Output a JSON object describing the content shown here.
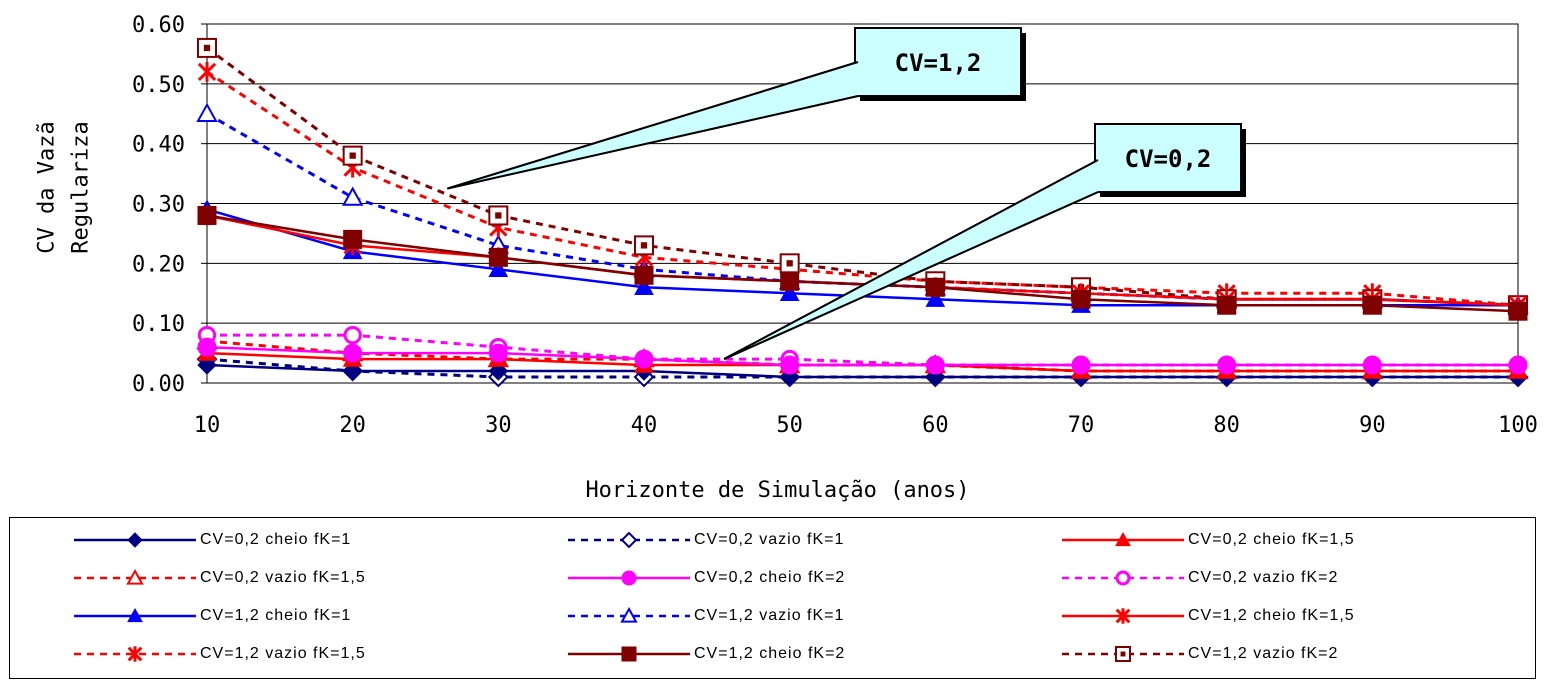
{
  "chart_data": {
    "type": "line",
    "title": "",
    "xlabel": "Horizonte de Simulação (anos)",
    "ylabel_line1": "CV da Vazã",
    "ylabel_line2": "Regulariza",
    "x": [
      10,
      20,
      30,
      40,
      50,
      60,
      70,
      80,
      90,
      100
    ],
    "xlim": [
      10,
      100
    ],
    "ylim": [
      0,
      0.6
    ],
    "yticks": [
      "0.00",
      "0.10",
      "0.20",
      "0.30",
      "0.40",
      "0.50",
      "0.60"
    ],
    "xticks": [
      "10",
      "20",
      "30",
      "40",
      "50",
      "60",
      "70",
      "80",
      "90",
      "100"
    ],
    "grid": "horizontal",
    "legend_position": "bottom",
    "series": [
      {
        "name": "CV=0,2 cheio fK=1",
        "color": "#000080",
        "dash": false,
        "marker": "diamond",
        "values": [
          0.03,
          0.02,
          0.02,
          0.02,
          0.01,
          0.01,
          0.01,
          0.01,
          0.01,
          0.01
        ]
      },
      {
        "name": "CV=0,2 vazio fK=1",
        "color": "#000080",
        "dash": true,
        "marker": "diamond-open",
        "values": [
          0.04,
          0.02,
          0.01,
          0.01,
          0.01,
          0.01,
          0.01,
          0.01,
          0.01,
          0.01
        ]
      },
      {
        "name": "CV=0,2 cheio fK=1,5",
        "color": "#ff0000",
        "dash": false,
        "marker": "triangle",
        "values": [
          0.05,
          0.04,
          0.04,
          0.03,
          0.03,
          0.03,
          0.02,
          0.02,
          0.02,
          0.02
        ]
      },
      {
        "name": "CV=0,2 vazio fK=1,5",
        "color": "#ff0000",
        "dash": true,
        "marker": "triangle-open",
        "values": [
          0.07,
          0.05,
          0.04,
          0.04,
          0.03,
          0.03,
          0.02,
          0.02,
          0.02,
          0.02
        ]
      },
      {
        "name": "CV=0,2 cheio fK=2",
        "color": "#ff00ff",
        "dash": false,
        "marker": "circle",
        "values": [
          0.06,
          0.05,
          0.05,
          0.04,
          0.03,
          0.03,
          0.03,
          0.03,
          0.03,
          0.03
        ]
      },
      {
        "name": "CV=0,2 vazio fK=2",
        "color": "#ff00ff",
        "dash": true,
        "marker": "circle-open",
        "values": [
          0.08,
          0.08,
          0.06,
          0.04,
          0.04,
          0.03,
          0.03,
          0.03,
          0.03,
          0.03
        ]
      },
      {
        "name": "CV=1,2 cheio fK=1",
        "color": "#0000ff",
        "dash": false,
        "marker": "triangle",
        "values": [
          0.29,
          0.22,
          0.19,
          0.16,
          0.15,
          0.14,
          0.13,
          0.13,
          0.13,
          0.13
        ]
      },
      {
        "name": "CV=1,2 vazio fK=1",
        "color": "#0000ff",
        "dash": true,
        "marker": "triangle-open",
        "values": [
          0.45,
          0.31,
          0.23,
          0.19,
          0.17,
          0.16,
          0.15,
          0.14,
          0.14,
          0.13
        ]
      },
      {
        "name": "CV=1,2 cheio fK=1,5",
        "color": "#ff0000",
        "dash": false,
        "marker": "star",
        "values": [
          0.28,
          0.23,
          0.21,
          0.18,
          0.17,
          0.16,
          0.15,
          0.14,
          0.14,
          0.13
        ]
      },
      {
        "name": "CV=1,2 vazio fK=1,5",
        "color": "#ff0000",
        "dash": true,
        "marker": "star",
        "values": [
          0.52,
          0.36,
          0.26,
          0.21,
          0.19,
          0.17,
          0.16,
          0.15,
          0.15,
          0.13
        ]
      },
      {
        "name": "CV=1,2 cheio fK=2",
        "color": "#800000",
        "dash": false,
        "marker": "square",
        "values": [
          0.28,
          0.24,
          0.21,
          0.18,
          0.17,
          0.16,
          0.14,
          0.13,
          0.13,
          0.12
        ]
      },
      {
        "name": "CV=1,2 vazio fK=2",
        "color": "#800000",
        "dash": true,
        "marker": "square-open",
        "values": [
          0.56,
          0.38,
          0.28,
          0.23,
          0.2,
          0.17,
          0.16,
          0.14,
          0.14,
          0.13
        ]
      }
    ],
    "annotations": [
      {
        "text": "CV=1,2",
        "point_x": 26.5,
        "point_y": 0.325
      },
      {
        "text": "CV=0,2",
        "point_x": 45.5,
        "point_y": 0.04
      }
    ]
  }
}
